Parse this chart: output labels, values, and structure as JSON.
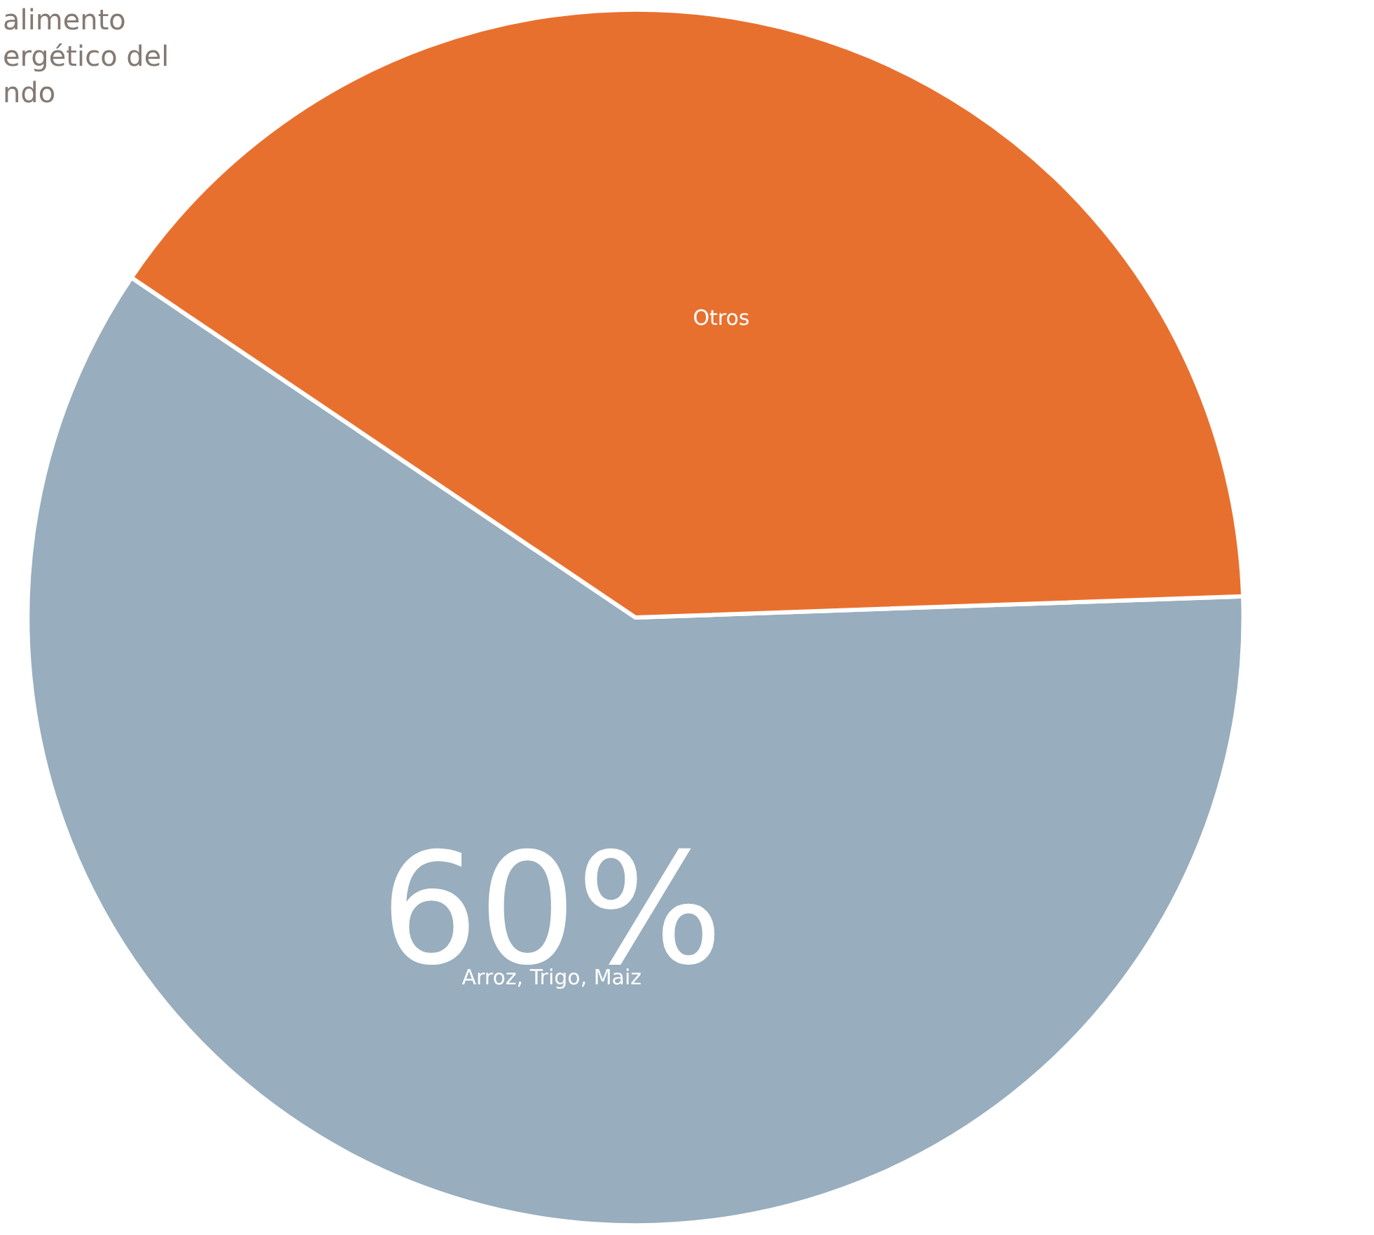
{
  "chart_data": {
    "type": "pie",
    "title": "alimento\nergético del\nndo",
    "categories": [
      "Arroz, Trigo, Maiz",
      "Otros"
    ],
    "values": [
      60,
      40
    ],
    "value_labels": [
      "60%",
      null
    ],
    "colors": [
      "#98adbd",
      "#e8702f"
    ],
    "legend": false
  }
}
